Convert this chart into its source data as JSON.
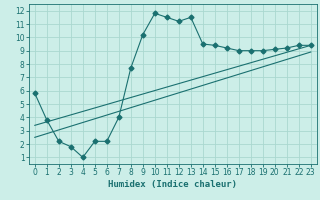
{
  "title": "",
  "xlabel": "Humidex (Indice chaleur)",
  "bg_color": "#cceee8",
  "line_color": "#1a7070",
  "xlim": [
    -0.5,
    23.5
  ],
  "ylim": [
    0.5,
    12.5
  ],
  "xticks": [
    0,
    1,
    2,
    3,
    4,
    5,
    6,
    7,
    8,
    9,
    10,
    11,
    12,
    13,
    14,
    15,
    16,
    17,
    18,
    19,
    20,
    21,
    22,
    23
  ],
  "yticks": [
    1,
    2,
    3,
    4,
    5,
    6,
    7,
    8,
    9,
    10,
    11,
    12
  ],
  "line1_x": [
    0,
    1,
    2,
    3,
    4,
    5,
    6,
    7,
    8,
    9,
    10,
    11,
    12,
    13,
    14,
    15,
    16,
    17,
    18,
    19,
    20,
    21,
    22,
    23
  ],
  "line1_y": [
    5.8,
    3.8,
    2.2,
    1.8,
    1.0,
    2.2,
    2.2,
    4.0,
    7.7,
    10.2,
    11.8,
    11.5,
    11.2,
    11.5,
    9.5,
    9.4,
    9.2,
    9.0,
    9.0,
    9.0,
    9.1,
    9.2,
    9.4,
    9.4
  ],
  "line2_x": [
    0,
    23
  ],
  "line2_y": [
    3.4,
    9.4
  ],
  "line3_x": [
    0,
    23
  ],
  "line3_y": [
    2.5,
    8.9
  ],
  "grid_color": "#aad8d0",
  "marker": "D",
  "markersize": 2.5,
  "lw": 0.8
}
